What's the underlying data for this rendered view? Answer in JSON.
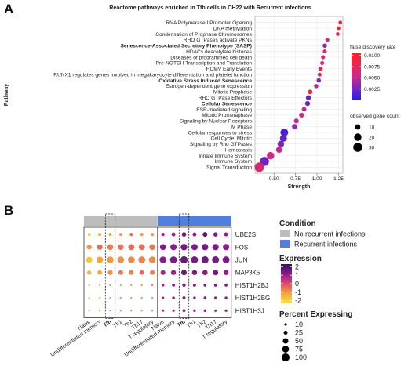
{
  "panel_a": {
    "letter": "A"
  },
  "panel_b": {
    "letter": "B"
  },
  "chart_data": [
    {
      "type": "scatter",
      "panel": "A",
      "title": "Reactome pathways enriched in Tfh cells in CH22 with Recurrent infections",
      "xlabel": "Strength",
      "ylabel": "Pathway",
      "xlim": [
        0.28,
        1.3
      ],
      "xticks": [
        0.5,
        0.75,
        1.0,
        1.25
      ],
      "xtick_labels": [
        "0.50",
        "0.75",
        "1.00",
        "1.25"
      ],
      "grid": true,
      "legend_position": "right",
      "color_legend": {
        "title": "false discovery rate",
        "ticks": [
          "0.0100",
          "0.0075",
          "0.0050",
          "0.0025"
        ],
        "tick_values": [
          0.01,
          0.0075,
          0.005,
          0.0025
        ],
        "range": [
          0.0,
          0.0105
        ],
        "low_color": "#2020ee",
        "mid_color": "#cc2b8a",
        "high_color": "#ff2020"
      },
      "size_legend": {
        "title": "observed gene count",
        "values": [
          10,
          20,
          30
        ],
        "labels": [
          "10",
          "20",
          "30"
        ]
      },
      "points": [
        {
          "label": "RNA Polymerase I Promoter Opening",
          "x": 1.27,
          "count": 5,
          "fdr": 0.0102,
          "bold": false
        },
        {
          "label": "DNA methylation",
          "x": 1.25,
          "count": 5,
          "fdr": 0.0098,
          "bold": false
        },
        {
          "label": "Condensation of Prophase Chromosomes",
          "x": 1.24,
          "count": 5,
          "fdr": 0.0092,
          "bold": false
        },
        {
          "label": "RHO GTPases activate PKNs",
          "x": 1.12,
          "count": 6,
          "fdr": 0.0065,
          "bold": false
        },
        {
          "label": "Senescence-Associated Secretory Phenotype (SASP)",
          "x": 1.09,
          "count": 7,
          "fdr": 0.0035,
          "bold": true
        },
        {
          "label": "HDACs deacetylate histones",
          "x": 1.09,
          "count": 6,
          "fdr": 0.0072,
          "bold": false
        },
        {
          "label": "Diseases of programmed cell death",
          "x": 1.07,
          "count": 6,
          "fdr": 0.0068,
          "bold": false
        },
        {
          "label": "Pre-NOTCH Transcription and Translation",
          "x": 1.06,
          "count": 6,
          "fdr": 0.0062,
          "bold": false
        },
        {
          "label": "HCMV Early Events",
          "x": 1.04,
          "count": 7,
          "fdr": 0.0075,
          "bold": false
        },
        {
          "label": "RUNX1 regulates genes involved in megakaryocyte differentiation and platelet function",
          "x": 1.03,
          "count": 6,
          "fdr": 0.0085,
          "bold": false
        },
        {
          "label": "Oxidative Stress Induced Senescence",
          "x": 1.02,
          "count": 7,
          "fdr": 0.003,
          "bold": true
        },
        {
          "label": "Estrogen-dependent gene expression",
          "x": 0.99,
          "count": 7,
          "fdr": 0.0045,
          "bold": false
        },
        {
          "label": "Mitotic Prophase",
          "x": 0.92,
          "count": 8,
          "fdr": 0.0102,
          "bold": false
        },
        {
          "label": "RHO GTPase Effectors",
          "x": 0.9,
          "count": 9,
          "fdr": 0.002,
          "bold": false
        },
        {
          "label": "Cellular Senescence",
          "x": 0.89,
          "count": 9,
          "fdr": 0.0022,
          "bold": true
        },
        {
          "label": "ESR-mediated signaling",
          "x": 0.85,
          "count": 8,
          "fdr": 0.0048,
          "bold": false
        },
        {
          "label": "Mitotic Prometaphase",
          "x": 0.82,
          "count": 9,
          "fdr": 0.0055,
          "bold": false
        },
        {
          "label": "Signaling by Nuclear Receptors",
          "x": 0.76,
          "count": 9,
          "fdr": 0.0052,
          "bold": false
        },
        {
          "label": "M Phase",
          "x": 0.74,
          "count": 10,
          "fdr": 0.0035,
          "bold": false
        },
        {
          "label": "Cellular responses to stress",
          "x": 0.62,
          "count": 22,
          "fdr": 0.0012,
          "bold": false
        },
        {
          "label": "Cell Cycle, Mitotic",
          "x": 0.61,
          "count": 18,
          "fdr": 0.0018,
          "bold": false
        },
        {
          "label": "Signaling by Rho GTPases",
          "x": 0.58,
          "count": 16,
          "fdr": 0.003,
          "bold": false
        },
        {
          "label": "Hemostasis",
          "x": 0.56,
          "count": 14,
          "fdr": 0.005,
          "bold": false
        },
        {
          "label": "Innate Immune System",
          "x": 0.46,
          "count": 20,
          "fdr": 0.0055,
          "bold": false
        },
        {
          "label": "Immune System",
          "x": 0.39,
          "count": 30,
          "fdr": 0.0022,
          "bold": false
        },
        {
          "label": "Signal Transduction",
          "x": 0.33,
          "count": 33,
          "fdr": 0.0065,
          "bold": false
        }
      ]
    },
    {
      "type": "heatmap",
      "panel": "B",
      "genes": [
        "UBE2S",
        "FOS",
        "JUN",
        "MAP3K5",
        "HIST1H2BJ",
        "HIST1H2BG",
        "HIST1H3J"
      ],
      "cell_types": [
        "Naive",
        "Undifferentiated memory",
        "Tfh",
        "Th1",
        "Th2",
        "Th17",
        "T regulatory"
      ],
      "highlight_cell_type": "Tfh",
      "conditions": [
        {
          "name": "No recurrent infections",
          "color": "#bdbdbd"
        },
        {
          "name": "Recurrent infections",
          "color": "#4f7fe0"
        }
      ],
      "condition_legend_title": "Condition",
      "expression_legend": {
        "title": "Expression",
        "ticks": [
          "2",
          "1",
          "0",
          "-1",
          "-2"
        ],
        "tick_values": [
          2,
          1,
          0,
          -1,
          -2
        ],
        "range": [
          -2.3,
          2.3
        ],
        "colors": [
          "#f0e442",
          "#f4a637",
          "#e0496f",
          "#8e1a8f",
          "#2c1563"
        ]
      },
      "percent_legend": {
        "title": "Percent Expressing",
        "values": [
          10,
          25,
          50,
          75,
          100
        ],
        "labels": [
          "10",
          "25",
          "50",
          "75",
          "100"
        ]
      },
      "groups": [
        {
          "condition": "No recurrent infections",
          "expression": [
            [
              -1.4,
              -1.0,
              -1.2,
              -0.9,
              -0.5,
              -1.0,
              -0.9
            ],
            [
              -0.9,
              -0.4,
              -0.6,
              -0.5,
              -0.4,
              -0.5,
              -0.6
            ],
            [
              -1.8,
              -1.2,
              -1.0,
              -0.9,
              -0.8,
              -0.7,
              -0.8
            ],
            [
              -1.6,
              -1.3,
              -0.9,
              -0.6,
              -0.7,
              -0.4,
              -0.7
            ],
            [
              -1.5,
              -1.1,
              -1.0,
              -0.9,
              -0.8,
              -0.9,
              -0.7
            ],
            [
              -1.6,
              -1.2,
              -0.9,
              -0.8,
              -0.9,
              -0.7,
              -0.8
            ],
            [
              -1.4,
              -1.0,
              -0.8,
              -0.7,
              -0.6,
              -0.8,
              -0.6
            ]
          ],
          "percent": [
            [
              12,
              14,
              15,
              14,
              18,
              16,
              15
            ],
            [
              40,
              52,
              56,
              55,
              58,
              60,
              58
            ],
            [
              62,
              70,
              72,
              72,
              74,
              76,
              74
            ],
            [
              30,
              34,
              40,
              36,
              38,
              34,
              38
            ],
            [
              5,
              5,
              6,
              5,
              5,
              5,
              6
            ],
            [
              5,
              5,
              5,
              5,
              5,
              5,
              5
            ],
            [
              5,
              6,
              5,
              5,
              5,
              5,
              5
            ]
          ]
        },
        {
          "condition": "Recurrent infections",
          "expression": [
            [
              0.8,
              1.0,
              1.4,
              1.2,
              1.7,
              1.4,
              1.0
            ],
            [
              1.3,
              1.2,
              1.5,
              1.3,
              1.4,
              1.3,
              1.1
            ],
            [
              1.2,
              1.3,
              1.6,
              1.4,
              1.5,
              1.4,
              1.3
            ],
            [
              0.9,
              1.0,
              1.6,
              1.3,
              1.2,
              1.4,
              1.1
            ],
            [
              0.9,
              1.2,
              1.5,
              1.3,
              1.4,
              1.2,
              1.3
            ],
            [
              1.0,
              1.1,
              1.4,
              1.2,
              1.3,
              1.1,
              1.2
            ],
            [
              0.9,
              1.0,
              1.3,
              1.1,
              1.2,
              1.0,
              1.1
            ]
          ],
          "percent": [
            [
              18,
              24,
              32,
              24,
              36,
              30,
              26
            ],
            [
              58,
              64,
              70,
              66,
              68,
              66,
              64
            ],
            [
              74,
              78,
              84,
              80,
              82,
              80,
              78
            ],
            [
              36,
              40,
              48,
              42,
              44,
              46,
              40
            ],
            [
              12,
              14,
              18,
              15,
              14,
              15,
              14
            ],
            [
              10,
              12,
              16,
              12,
              13,
              12,
              12
            ],
            [
              9,
              10,
              14,
              11,
              12,
              10,
              11
            ]
          ]
        }
      ]
    }
  ]
}
